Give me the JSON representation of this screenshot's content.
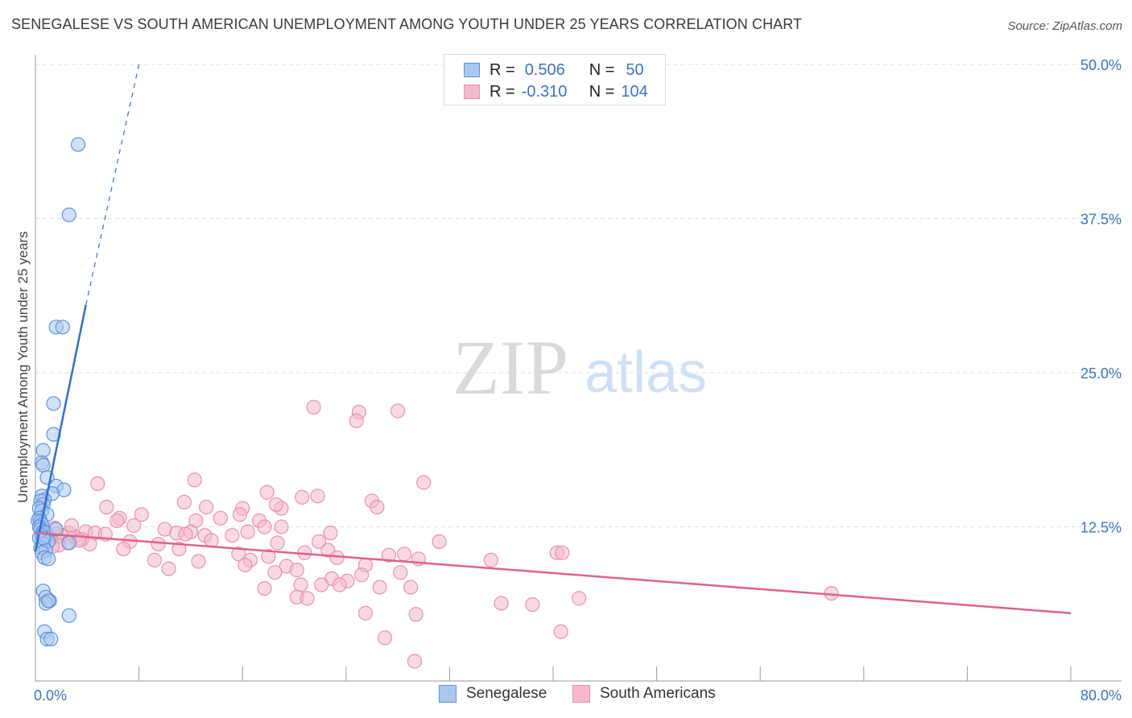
{
  "title": "SENEGALESE VS SOUTH AMERICAN UNEMPLOYMENT AMONG YOUTH UNDER 25 YEARS CORRELATION CHART",
  "source": "Source: ZipAtlas.com",
  "watermark": {
    "zip": "ZIP",
    "atlas": "atlas"
  },
  "legend": {
    "rows": [
      {
        "r_label": "R =",
        "r_value": "0.506",
        "n_label": "N =",
        "n_value": "50"
      },
      {
        "r_label": "R =",
        "r_value": "-0.310",
        "n_label": "N =",
        "n_value": "104"
      }
    ]
  },
  "colors": {
    "blue_fill": "#a9c8f0",
    "blue_stroke": "#5b93dc",
    "blue_line": "#2f6fd0",
    "pink_fill": "#f6b8cc",
    "pink_stroke": "#e890ae",
    "pink_line": "#e06090",
    "tick_text": "#3a74c8",
    "grid": "#dddddd"
  },
  "chart_data": {
    "type": "scatter",
    "title": "SENEGALESE VS SOUTH AMERICAN UNEMPLOYMENT AMONG YOUTH UNDER 25 YEARS CORRELATION CHART",
    "xlabel": "",
    "ylabel": "Unemployment Among Youth under 25 years",
    "xlim": [
      0,
      80
    ],
    "ylim": [
      0,
      50
    ],
    "x_tick_labels": [
      "0.0%",
      "80.0%"
    ],
    "y_ticks": [
      12.5,
      25.0,
      37.5,
      50.0
    ],
    "y_tick_labels": [
      "12.5%",
      "25.0%",
      "37.5%",
      "50.0%"
    ],
    "legend_position": "top-center",
    "series": [
      {
        "name": "Senegalese",
        "r": 0.506,
        "n": 50,
        "trend": {
          "x0": 0,
          "y0": 10.5,
          "x1": 3.9,
          "y1": 30.5,
          "dash_x1": 8.0,
          "dash_y1": 50.0
        },
        "points": [
          [
            3.3,
            43.5
          ],
          [
            2.6,
            37.8
          ],
          [
            1.6,
            28.7
          ],
          [
            2.1,
            28.7
          ],
          [
            1.4,
            22.5
          ],
          [
            1.4,
            20.0
          ],
          [
            0.6,
            18.7
          ],
          [
            0.5,
            17.7
          ],
          [
            0.6,
            17.5
          ],
          [
            0.9,
            16.5
          ],
          [
            1.6,
            15.8
          ],
          [
            2.2,
            15.5
          ],
          [
            1.3,
            15.2
          ],
          [
            0.5,
            15.0
          ],
          [
            0.7,
            14.7
          ],
          [
            0.4,
            14.6
          ],
          [
            0.6,
            14.3
          ],
          [
            0.3,
            14.0
          ],
          [
            0.5,
            13.8
          ],
          [
            0.9,
            13.5
          ],
          [
            0.3,
            13.2
          ],
          [
            0.2,
            13.0
          ],
          [
            0.4,
            12.9
          ],
          [
            0.5,
            12.7
          ],
          [
            0.3,
            12.5
          ],
          [
            0.4,
            12.3
          ],
          [
            0.6,
            12.1
          ],
          [
            0.8,
            12.0
          ],
          [
            0.5,
            11.8
          ],
          [
            0.3,
            11.6
          ],
          [
            0.7,
            11.5
          ],
          [
            1.0,
            11.3
          ],
          [
            0.6,
            11.1
          ],
          [
            0.4,
            10.8
          ],
          [
            0.8,
            10.6
          ],
          [
            0.5,
            10.4
          ],
          [
            0.7,
            10.0
          ],
          [
            1.0,
            9.9
          ],
          [
            2.6,
            11.2
          ],
          [
            0.6,
            7.3
          ],
          [
            0.8,
            6.8
          ],
          [
            1.1,
            6.5
          ],
          [
            0.8,
            6.3
          ],
          [
            1.0,
            6.5
          ],
          [
            2.6,
            5.3
          ],
          [
            0.7,
            4.0
          ],
          [
            0.9,
            3.4
          ],
          [
            1.2,
            3.4
          ],
          [
            1.6,
            12.3
          ],
          [
            0.6,
            11.6
          ]
        ]
      },
      {
        "name": "South Americans",
        "r": -0.31,
        "n": 104,
        "trend": {
          "x0": 0,
          "y0": 12.0,
          "x1": 80,
          "y1": 5.5
        },
        "points": [
          [
            21.5,
            22.2
          ],
          [
            25.0,
            21.8
          ],
          [
            28.0,
            21.9
          ],
          [
            24.8,
            21.1
          ],
          [
            30.0,
            16.1
          ],
          [
            12.3,
            16.3
          ],
          [
            4.8,
            16.0
          ],
          [
            17.9,
            15.3
          ],
          [
            20.6,
            14.9
          ],
          [
            21.8,
            15.0
          ],
          [
            26.0,
            14.6
          ],
          [
            26.4,
            14.1
          ],
          [
            11.5,
            14.5
          ],
          [
            13.2,
            14.1
          ],
          [
            16.0,
            14.0
          ],
          [
            19.0,
            14.0
          ],
          [
            5.5,
            14.1
          ],
          [
            6.5,
            13.2
          ],
          [
            8.2,
            13.5
          ],
          [
            12.4,
            13.0
          ],
          [
            14.3,
            13.2
          ],
          [
            17.3,
            13.0
          ],
          [
            15.8,
            13.5
          ],
          [
            18.6,
            14.3
          ],
          [
            6.3,
            13.0
          ],
          [
            7.6,
            12.6
          ],
          [
            10.0,
            12.3
          ],
          [
            10.9,
            12.0
          ],
          [
            12.0,
            12.1
          ],
          [
            11.6,
            11.9
          ],
          [
            13.1,
            11.8
          ],
          [
            15.2,
            11.8
          ],
          [
            16.4,
            12.1
          ],
          [
            17.7,
            12.5
          ],
          [
            19.0,
            12.5
          ],
          [
            13.6,
            11.4
          ],
          [
            3.9,
            12.1
          ],
          [
            4.6,
            12.0
          ],
          [
            5.4,
            11.9
          ],
          [
            3.0,
            11.7
          ],
          [
            3.6,
            11.5
          ],
          [
            4.2,
            11.1
          ],
          [
            7.3,
            11.3
          ],
          [
            9.5,
            11.1
          ],
          [
            11.1,
            10.7
          ],
          [
            18.7,
            11.2
          ],
          [
            21.9,
            11.3
          ],
          [
            22.8,
            12.0
          ],
          [
            6.8,
            10.7
          ],
          [
            9.2,
            9.8
          ],
          [
            10.3,
            9.1
          ],
          [
            15.7,
            10.3
          ],
          [
            16.6,
            9.8
          ],
          [
            18.0,
            10.1
          ],
          [
            19.4,
            9.3
          ],
          [
            20.8,
            10.4
          ],
          [
            22.6,
            10.6
          ],
          [
            23.3,
            10.0
          ],
          [
            25.5,
            9.4
          ],
          [
            27.3,
            10.2
          ],
          [
            28.5,
            10.3
          ],
          [
            29.6,
            9.9
          ],
          [
            31.2,
            11.3
          ],
          [
            35.2,
            9.8
          ],
          [
            40.3,
            10.4
          ],
          [
            40.7,
            10.4
          ],
          [
            12.6,
            9.7
          ],
          [
            16.2,
            9.4
          ],
          [
            18.5,
            8.8
          ],
          [
            20.2,
            9.0
          ],
          [
            22.9,
            8.3
          ],
          [
            24.1,
            8.1
          ],
          [
            25.2,
            8.6
          ],
          [
            26.6,
            7.6
          ],
          [
            28.2,
            8.8
          ],
          [
            29.0,
            7.6
          ],
          [
            20.5,
            7.8
          ],
          [
            22.1,
            7.8
          ],
          [
            17.7,
            7.5
          ],
          [
            20.2,
            6.8
          ],
          [
            21.0,
            6.7
          ],
          [
            23.5,
            7.8
          ],
          [
            25.5,
            5.5
          ],
          [
            29.4,
            5.4
          ],
          [
            36.0,
            6.3
          ],
          [
            38.4,
            6.2
          ],
          [
            42.0,
            6.7
          ],
          [
            61.5,
            7.1
          ],
          [
            40.6,
            4.0
          ],
          [
            27.0,
            3.5
          ],
          [
            29.3,
            1.6
          ],
          [
            0.8,
            12.1
          ],
          [
            1.5,
            11.9
          ],
          [
            2.6,
            12.0
          ],
          [
            2.0,
            11.8
          ],
          [
            1.2,
            11.5
          ],
          [
            2.5,
            11.2
          ],
          [
            1.8,
            11.0
          ],
          [
            0.6,
            10.8
          ],
          [
            2.8,
            12.6
          ],
          [
            1.5,
            12.4
          ],
          [
            3.4,
            11.4
          ],
          [
            0.9,
            11.3
          ],
          [
            1.3,
            10.9
          ]
        ]
      }
    ]
  },
  "bottom_legend": {
    "senegalese": "Senegalese",
    "south_americans": "South Americans"
  }
}
